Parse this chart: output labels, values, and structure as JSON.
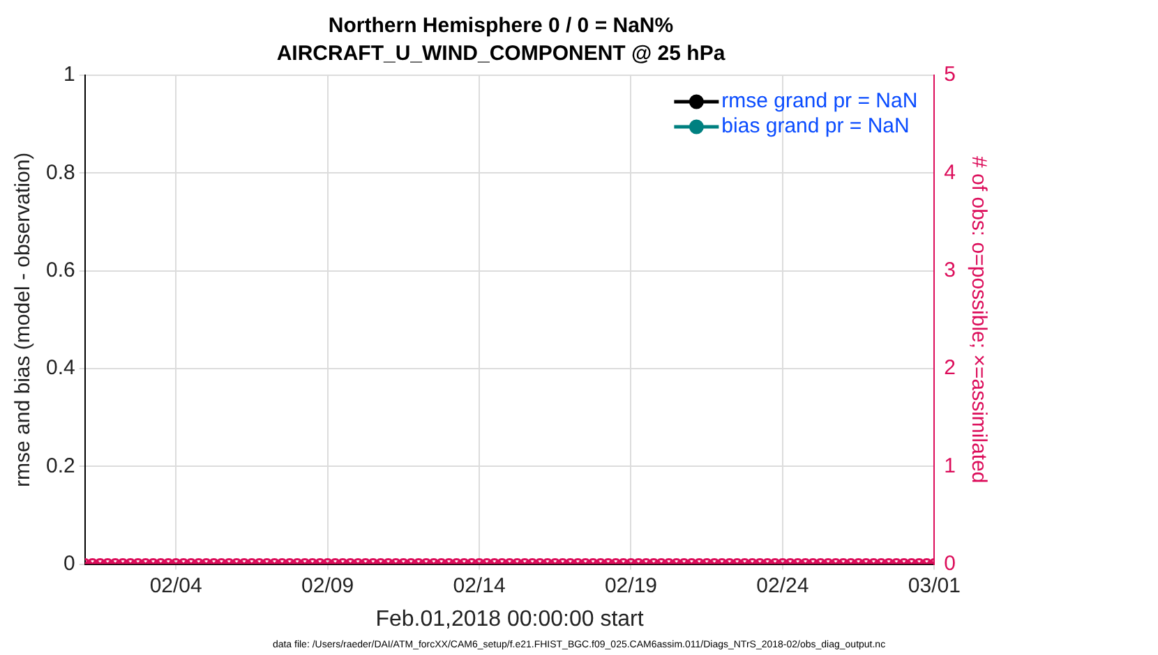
{
  "chart_data": {
    "type": "line",
    "title": "Northern Hemisphere 0 / 0 = NaN%",
    "subtitle": "AIRCRAFT_U_WIND_COMPONENT @ 25 hPa",
    "xlabel": "Feb.01,2018 00:00:00 start",
    "ylabel": "rmse and bias (model - observation)",
    "y2label": "# of obs: o=possible; ×=assimilated",
    "annotations": [
      "data file: /Users/raeder/DAI/ATM_forcXX/CAM6_setup/f.e21.FHIST_BGC.f09_025.CAM6assim.011/Diags_NTrS_2018-02/obs_diag_output.nc"
    ],
    "x": [
      "2018-02-01T00:00",
      "2018-02-01T06:00",
      "2018-02-01T12:00",
      "2018-02-01T18:00",
      "2018-02-02T00:00",
      "2018-02-02T06:00",
      "2018-02-02T12:00",
      "2018-02-02T18:00",
      "2018-02-03T00:00",
      "2018-02-03T06:00",
      "2018-02-03T12:00",
      "2018-02-03T18:00",
      "2018-02-04T00:00",
      "2018-02-04T06:00",
      "2018-02-04T12:00",
      "2018-02-04T18:00",
      "2018-02-05T00:00",
      "2018-02-05T06:00",
      "2018-02-05T12:00",
      "2018-02-05T18:00",
      "2018-02-06T00:00",
      "2018-02-06T06:00",
      "2018-02-06T12:00",
      "2018-02-06T18:00",
      "2018-02-07T00:00",
      "2018-02-07T06:00",
      "2018-02-07T12:00",
      "2018-02-07T18:00",
      "2018-02-08T00:00",
      "2018-02-08T06:00",
      "2018-02-08T12:00",
      "2018-02-08T18:00",
      "2018-02-09T00:00",
      "2018-02-09T06:00",
      "2018-02-09T12:00",
      "2018-02-09T18:00",
      "2018-02-10T00:00",
      "2018-02-10T06:00",
      "2018-02-10T12:00",
      "2018-02-10T18:00",
      "2018-02-11T00:00",
      "2018-02-11T06:00",
      "2018-02-11T12:00",
      "2018-02-11T18:00",
      "2018-02-12T00:00",
      "2018-02-12T06:00",
      "2018-02-12T12:00",
      "2018-02-12T18:00",
      "2018-02-13T00:00",
      "2018-02-13T06:00",
      "2018-02-13T12:00",
      "2018-02-13T18:00",
      "2018-02-14T00:00",
      "2018-02-14T06:00",
      "2018-02-14T12:00",
      "2018-02-14T18:00",
      "2018-02-15T00:00",
      "2018-02-15T06:00",
      "2018-02-15T12:00",
      "2018-02-15T18:00",
      "2018-02-16T00:00",
      "2018-02-16T06:00",
      "2018-02-16T12:00",
      "2018-02-16T18:00",
      "2018-02-17T00:00",
      "2018-02-17T06:00",
      "2018-02-17T12:00",
      "2018-02-17T18:00",
      "2018-02-18T00:00",
      "2018-02-18T06:00",
      "2018-02-18T12:00",
      "2018-02-18T18:00",
      "2018-02-19T00:00",
      "2018-02-19T06:00",
      "2018-02-19T12:00",
      "2018-02-19T18:00",
      "2018-02-20T00:00",
      "2018-02-20T06:00",
      "2018-02-20T12:00",
      "2018-02-20T18:00",
      "2018-02-21T00:00",
      "2018-02-21T06:00",
      "2018-02-21T12:00",
      "2018-02-21T18:00",
      "2018-02-22T00:00",
      "2018-02-22T06:00",
      "2018-02-22T12:00",
      "2018-02-22T18:00",
      "2018-02-23T00:00",
      "2018-02-23T06:00",
      "2018-02-23T12:00",
      "2018-02-23T18:00",
      "2018-02-24T00:00",
      "2018-02-24T06:00",
      "2018-02-24T12:00",
      "2018-02-24T18:00",
      "2018-02-25T00:00",
      "2018-02-25T06:00",
      "2018-02-25T12:00",
      "2018-02-25T18:00",
      "2018-02-26T00:00",
      "2018-02-26T06:00",
      "2018-02-26T12:00",
      "2018-02-26T18:00",
      "2018-02-27T00:00",
      "2018-02-27T06:00",
      "2018-02-27T12:00",
      "2018-02-27T18:00",
      "2018-02-28T00:00",
      "2018-02-28T06:00",
      "2018-02-28T12:00",
      "2018-02-28T18:00",
      "2018-03-01T00:00"
    ],
    "series": [
      {
        "name": "rmse grand pr = NaN",
        "color": "#000000",
        "marker": "circle",
        "values": [
          null,
          null,
          null,
          null,
          null,
          null,
          null,
          null,
          null,
          null,
          null,
          null,
          null,
          null,
          null,
          null,
          null,
          null,
          null,
          null,
          null,
          null,
          null,
          null,
          null,
          null,
          null,
          null,
          null,
          null,
          null,
          null,
          null,
          null,
          null,
          null,
          null,
          null,
          null,
          null,
          null,
          null,
          null,
          null,
          null,
          null,
          null,
          null,
          null,
          null,
          null,
          null,
          null,
          null,
          null,
          null,
          null,
          null,
          null,
          null,
          null,
          null,
          null,
          null,
          null,
          null,
          null,
          null,
          null,
          null,
          null,
          null,
          null,
          null,
          null,
          null,
          null,
          null,
          null,
          null,
          null,
          null,
          null,
          null,
          null,
          null,
          null,
          null,
          null,
          null,
          null,
          null,
          null,
          null,
          null,
          null,
          null,
          null,
          null,
          null,
          null,
          null,
          null,
          null,
          null,
          null,
          null,
          null,
          null,
          null,
          null,
          null,
          null
        ]
      },
      {
        "name": "bias grand pr = NaN",
        "color": "#008080",
        "marker": "circle",
        "values": [
          null,
          null,
          null,
          null,
          null,
          null,
          null,
          null,
          null,
          null,
          null,
          null,
          null,
          null,
          null,
          null,
          null,
          null,
          null,
          null,
          null,
          null,
          null,
          null,
          null,
          null,
          null,
          null,
          null,
          null,
          null,
          null,
          null,
          null,
          null,
          null,
          null,
          null,
          null,
          null,
          null,
          null,
          null,
          null,
          null,
          null,
          null,
          null,
          null,
          null,
          null,
          null,
          null,
          null,
          null,
          null,
          null,
          null,
          null,
          null,
          null,
          null,
          null,
          null,
          null,
          null,
          null,
          null,
          null,
          null,
          null,
          null,
          null,
          null,
          null,
          null,
          null,
          null,
          null,
          null,
          null,
          null,
          null,
          null,
          null,
          null,
          null,
          null,
          null,
          null,
          null,
          null,
          null,
          null,
          null,
          null,
          null,
          null,
          null,
          null,
          null,
          null,
          null,
          null,
          null,
          null,
          null,
          null,
          null,
          null,
          null,
          null,
          null
        ]
      },
      {
        "type": "scatter",
        "axis": "y2",
        "color": "#dc0d5a",
        "marker": "circle",
        "values": [
          0,
          0,
          0,
          0,
          0,
          0,
          0,
          0,
          0,
          0,
          0,
          0,
          0,
          0,
          0,
          0,
          0,
          0,
          0,
          0,
          0,
          0,
          0,
          0,
          0,
          0,
          0,
          0,
          0,
          0,
          0,
          0,
          0,
          0,
          0,
          0,
          0,
          0,
          0,
          0,
          0,
          0,
          0,
          0,
          0,
          0,
          0,
          0,
          0,
          0,
          0,
          0,
          0,
          0,
          0,
          0,
          0,
          0,
          0,
          0,
          0,
          0,
          0,
          0,
          0,
          0,
          0,
          0,
          0,
          0,
          0,
          0,
          0,
          0,
          0,
          0,
          0,
          0,
          0,
          0,
          0,
          0,
          0,
          0,
          0,
          0,
          0,
          0,
          0,
          0,
          0,
          0,
          0,
          0,
          0,
          0,
          0,
          0,
          0,
          0,
          0,
          0,
          0,
          0,
          0,
          0,
          0,
          0,
          0,
          0,
          0,
          0,
          0
        ]
      },
      {
        "type": "scatter",
        "axis": "y2",
        "color": "#dc0d5a",
        "marker": "cross",
        "values": [
          0,
          0,
          0,
          0,
          0,
          0,
          0,
          0,
          0,
          0,
          0,
          0,
          0,
          0,
          0,
          0,
          0,
          0,
          0,
          0,
          0,
          0,
          0,
          0,
          0,
          0,
          0,
          0,
          0,
          0,
          0,
          0,
          0,
          0,
          0,
          0,
          0,
          0,
          0,
          0,
          0,
          0,
          0,
          0,
          0,
          0,
          0,
          0,
          0,
          0,
          0,
          0,
          0,
          0,
          0,
          0,
          0,
          0,
          0,
          0,
          0,
          0,
          0,
          0,
          0,
          0,
          0,
          0,
          0,
          0,
          0,
          0,
          0,
          0,
          0,
          0,
          0,
          0,
          0,
          0,
          0,
          0,
          0,
          0,
          0,
          0,
          0,
          0,
          0,
          0,
          0,
          0,
          0,
          0,
          0,
          0,
          0,
          0,
          0,
          0,
          0,
          0,
          0,
          0,
          0,
          0,
          0,
          0,
          0,
          0,
          0,
          0,
          0
        ]
      }
    ],
    "xlim": [
      "2018-02-01",
      "2018-03-01"
    ],
    "xticks": [
      {
        "value": "2018-02-04",
        "label": "02/04"
      },
      {
        "value": "2018-02-09",
        "label": "02/09"
      },
      {
        "value": "2018-02-14",
        "label": "02/14"
      },
      {
        "value": "2018-02-19",
        "label": "02/19"
      },
      {
        "value": "2018-02-24",
        "label": "02/24"
      },
      {
        "value": "2018-03-01",
        "label": "03/01"
      }
    ],
    "ylim": [
      0,
      1
    ],
    "yticks": [
      0,
      0.2,
      0.4,
      0.6,
      0.8,
      1
    ],
    "y2lim": [
      0,
      5
    ],
    "y2ticks": [
      0,
      1,
      2,
      3,
      4,
      5
    ],
    "grid": true,
    "legend": "top right"
  }
}
